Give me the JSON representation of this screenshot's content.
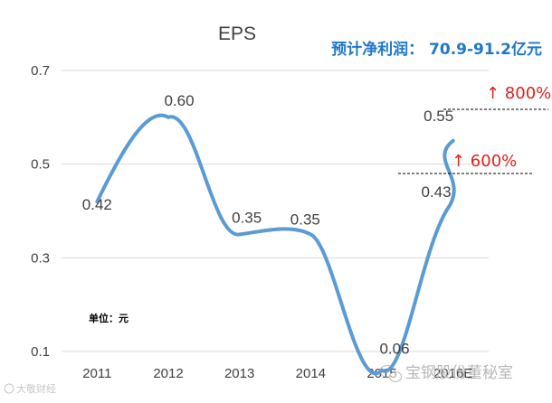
{
  "chart_data": {
    "type": "line",
    "title": "EPS",
    "categories": [
      "2011",
      "2012",
      "2013",
      "2014",
      "2015",
      "2016E"
    ],
    "values": [
      0.42,
      0.6,
      0.35,
      0.35,
      0.06,
      0.55
    ],
    "value_labels": [
      "0.42",
      "0.60",
      "0.35",
      "0.35",
      "0.06",
      "0.55"
    ],
    "extra_point": {
      "category": "2016E",
      "value": 0.43,
      "label": "0.43"
    },
    "ylim": [
      0.1,
      0.7
    ],
    "yticks": [
      "0.1",
      "0.3",
      "0.5",
      "0.7"
    ],
    "grid": true,
    "line_color": "#5b9bd5",
    "annotations": {
      "profit_forecast": "预计净利润： 70.9-91.2亿元",
      "growth_high": "↑ 800%",
      "growth_low": "↑ 600%",
      "unit": "单位：元"
    }
  },
  "watermarks": {
    "main": "宝钢股份董秘室",
    "corner": "大敬财经"
  },
  "colors": {
    "line": "#5b9bd5",
    "profit_text": "#1f77c9",
    "growth_text": "#e0201c",
    "grid": "#d9d9d9"
  }
}
